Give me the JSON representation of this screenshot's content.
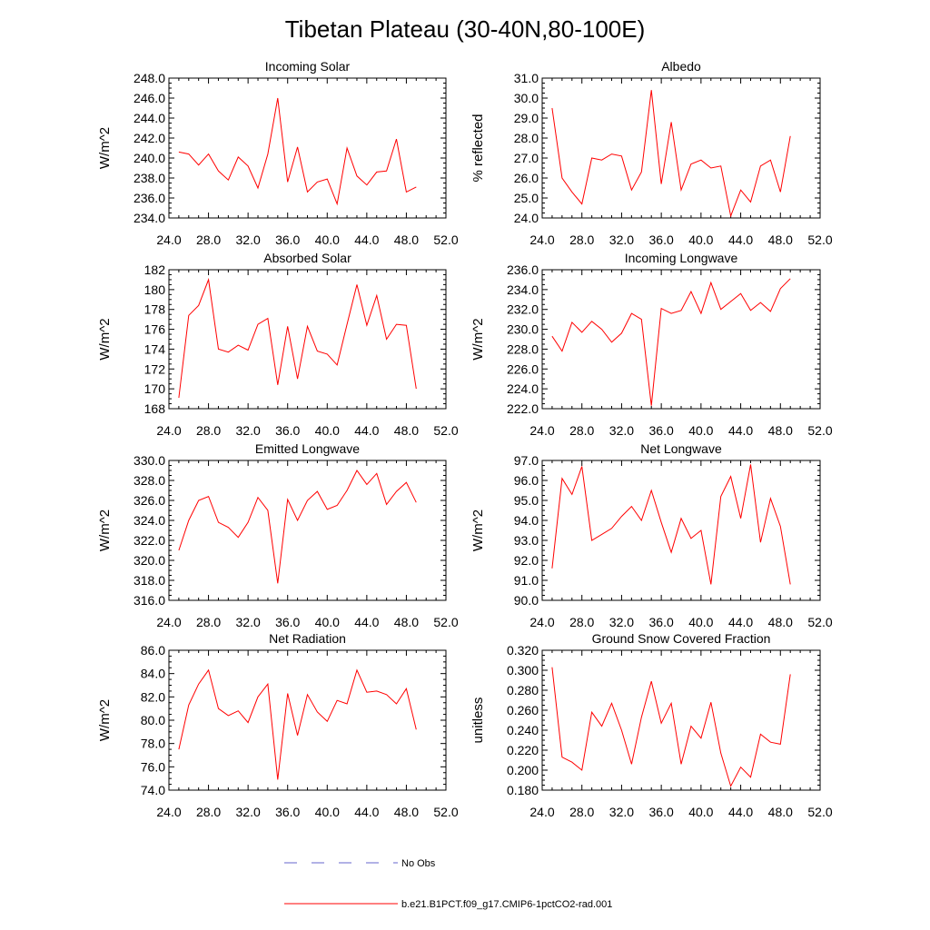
{
  "figure": {
    "title": "Tibetan Plateau (30-40N,80-100E)",
    "line_color": "#ff0000",
    "obs_color": "#6666cc"
  },
  "legend": {
    "obs_label": "No Obs",
    "model_label": "b.e21.B1PCT.f09_g17.CMIP6-1pctCO2-rad.001"
  },
  "chart_data": [
    {
      "type": "line",
      "title": "Incoming Solar",
      "ylabel": "W/m^2",
      "xlim": [
        24,
        52
      ],
      "ylim": [
        234,
        248
      ],
      "xticks": [
        "24.0",
        "28.0",
        "32.0",
        "36.0",
        "40.0",
        "44.0",
        "48.0",
        "52.0"
      ],
      "yticks": [
        "234.0",
        "236.0",
        "238.0",
        "240.0",
        "242.0",
        "244.0",
        "246.0",
        "248.0"
      ],
      "x": [
        25,
        26,
        27,
        28,
        29,
        30,
        31,
        32,
        33,
        34,
        35,
        36,
        37,
        38,
        39,
        40,
        41,
        42,
        43,
        44,
        45,
        46,
        47,
        48,
        49
      ],
      "series": [
        {
          "values": [
            240.6,
            240.4,
            239.3,
            240.4,
            238.7,
            237.8,
            240.1,
            239.2,
            237.0,
            240.4,
            246.0,
            237.6,
            241.1,
            236.6,
            237.6,
            237.9,
            235.4,
            241.0,
            238.2,
            237.3,
            238.6,
            238.7,
            241.9,
            236.6,
            237.1
          ]
        }
      ]
    },
    {
      "type": "line",
      "title": "Albedo",
      "ylabel": "% reflected",
      "xlim": [
        24,
        52
      ],
      "ylim": [
        24,
        31
      ],
      "xticks": [
        "24.0",
        "28.0",
        "32.0",
        "36.0",
        "40.0",
        "44.0",
        "48.0",
        "52.0"
      ],
      "yticks": [
        "24.0",
        "25.0",
        "26.0",
        "27.0",
        "28.0",
        "29.0",
        "30.0",
        "31.0"
      ],
      "x": [
        25,
        26,
        27,
        28,
        29,
        30,
        31,
        32,
        33,
        34,
        35,
        36,
        37,
        38,
        39,
        40,
        41,
        42,
        43,
        44,
        45,
        46,
        47,
        48,
        49
      ],
      "series": [
        {
          "values": [
            29.5,
            26.0,
            25.3,
            24.7,
            27.0,
            26.9,
            27.2,
            27.1,
            25.4,
            26.3,
            30.4,
            25.7,
            28.8,
            25.4,
            26.7,
            26.9,
            26.5,
            26.6,
            24.1,
            25.4,
            24.8,
            26.6,
            26.9,
            25.3,
            28.1
          ]
        }
      ]
    },
    {
      "type": "line",
      "title": "Absorbed Solar",
      "ylabel": "W/m^2",
      "xlim": [
        24,
        52
      ],
      "ylim": [
        168,
        182
      ],
      "xticks": [
        "24.0",
        "28.0",
        "32.0",
        "36.0",
        "40.0",
        "44.0",
        "48.0",
        "52.0"
      ],
      "yticks": [
        "168",
        "170",
        "172",
        "174",
        "176",
        "178",
        "180",
        "182"
      ],
      "x": [
        25,
        26,
        27,
        28,
        29,
        30,
        31,
        32,
        33,
        34,
        35,
        36,
        37,
        38,
        39,
        40,
        41,
        42,
        43,
        44,
        45,
        46,
        47,
        48,
        49
      ],
      "series": [
        {
          "values": [
            169.1,
            177.4,
            178.4,
            181.0,
            174.0,
            173.7,
            174.4,
            173.9,
            176.5,
            177.1,
            170.4,
            176.3,
            171.0,
            176.3,
            173.8,
            173.5,
            172.4,
            176.5,
            180.5,
            176.4,
            179.4,
            175.0,
            176.5,
            176.4,
            170.0
          ]
        }
      ]
    },
    {
      "type": "line",
      "title": "Incoming Longwave",
      "ylabel": "W/m^2",
      "xlim": [
        24,
        52
      ],
      "ylim": [
        222,
        236
      ],
      "xticks": [
        "24.0",
        "28.0",
        "32.0",
        "36.0",
        "40.0",
        "44.0",
        "48.0",
        "52.0"
      ],
      "yticks": [
        "222.0",
        "224.0",
        "226.0",
        "228.0",
        "230.0",
        "232.0",
        "234.0",
        "236.0"
      ],
      "x": [
        25,
        26,
        27,
        28,
        29,
        30,
        31,
        32,
        33,
        34,
        35,
        36,
        37,
        38,
        39,
        40,
        41,
        42,
        43,
        44,
        45,
        46,
        47,
        48,
        49
      ],
      "series": [
        {
          "values": [
            229.3,
            227.8,
            230.7,
            229.7,
            230.8,
            230.0,
            228.7,
            229.6,
            231.6,
            231.0,
            222.3,
            232.1,
            231.6,
            231.9,
            233.8,
            231.6,
            234.7,
            232.0,
            232.8,
            233.6,
            231.9,
            232.7,
            231.8,
            234.1,
            235.1
          ]
        }
      ]
    },
    {
      "type": "line",
      "title": "Emitted Longwave",
      "ylabel": "W/m^2",
      "xlim": [
        24,
        52
      ],
      "ylim": [
        316,
        330
      ],
      "xticks": [
        "24.0",
        "28.0",
        "32.0",
        "36.0",
        "40.0",
        "44.0",
        "48.0",
        "52.0"
      ],
      "yticks": [
        "316.0",
        "318.0",
        "320.0",
        "322.0",
        "324.0",
        "326.0",
        "328.0",
        "330.0"
      ],
      "x": [
        25,
        26,
        27,
        28,
        29,
        30,
        31,
        32,
        33,
        34,
        35,
        36,
        37,
        38,
        39,
        40,
        41,
        42,
        43,
        44,
        45,
        46,
        47,
        48,
        49
      ],
      "series": [
        {
          "values": [
            321.0,
            324.0,
            326.0,
            326.4,
            323.8,
            323.3,
            322.3,
            323.8,
            326.3,
            325.0,
            317.7,
            326.1,
            324.0,
            326.0,
            326.9,
            325.1,
            325.5,
            327.0,
            329.0,
            327.6,
            328.7,
            325.6,
            326.9,
            327.8,
            325.8
          ]
        }
      ]
    },
    {
      "type": "line",
      "title": "Net Longwave",
      "ylabel": "W/m^2",
      "xlim": [
        24,
        52
      ],
      "ylim": [
        90,
        97
      ],
      "xticks": [
        "24.0",
        "28.0",
        "32.0",
        "36.0",
        "40.0",
        "44.0",
        "48.0",
        "52.0"
      ],
      "yticks": [
        "90.0",
        "91.0",
        "92.0",
        "93.0",
        "94.0",
        "95.0",
        "96.0",
        "97.0"
      ],
      "x": [
        25,
        26,
        27,
        28,
        29,
        30,
        31,
        32,
        33,
        34,
        35,
        36,
        37,
        38,
        39,
        40,
        41,
        42,
        43,
        44,
        45,
        46,
        47,
        48,
        49
      ],
      "series": [
        {
          "values": [
            91.6,
            96.1,
            95.3,
            96.7,
            93.0,
            93.3,
            93.6,
            94.2,
            94.7,
            94.0,
            95.5,
            93.9,
            92.4,
            94.1,
            93.1,
            93.5,
            90.8,
            95.2,
            96.2,
            94.1,
            96.8,
            92.9,
            95.1,
            93.7,
            90.8
          ]
        }
      ]
    },
    {
      "type": "line",
      "title": "Net Radiation",
      "ylabel": "W/m^2",
      "xlim": [
        24,
        52
      ],
      "ylim": [
        74,
        86
      ],
      "xticks": [
        "24.0",
        "28.0",
        "32.0",
        "36.0",
        "40.0",
        "44.0",
        "48.0",
        "52.0"
      ],
      "yticks": [
        "74.0",
        "76.0",
        "78.0",
        "80.0",
        "82.0",
        "84.0",
        "86.0"
      ],
      "x": [
        25,
        26,
        27,
        28,
        29,
        30,
        31,
        32,
        33,
        34,
        35,
        36,
        37,
        38,
        39,
        40,
        41,
        42,
        43,
        44,
        45,
        46,
        47,
        48,
        49
      ],
      "series": [
        {
          "values": [
            77.5,
            81.3,
            83.1,
            84.3,
            81.0,
            80.4,
            80.8,
            79.8,
            82.0,
            83.1,
            74.9,
            82.3,
            78.7,
            82.2,
            80.7,
            79.9,
            81.7,
            81.4,
            84.3,
            82.4,
            82.5,
            82.2,
            81.4,
            82.7,
            79.2
          ]
        }
      ]
    },
    {
      "type": "line",
      "title": "Ground Snow Covered Fraction",
      "ylabel": "unitless",
      "xlim": [
        24,
        52
      ],
      "ylim": [
        0.18,
        0.32
      ],
      "xticks": [
        "24.0",
        "28.0",
        "32.0",
        "36.0",
        "40.0",
        "44.0",
        "48.0",
        "52.0"
      ],
      "yticks": [
        "0.180",
        "0.200",
        "0.220",
        "0.240",
        "0.260",
        "0.280",
        "0.300",
        "0.320"
      ],
      "x": [
        25,
        26,
        27,
        28,
        29,
        30,
        31,
        32,
        33,
        34,
        35,
        36,
        37,
        38,
        39,
        40,
        41,
        42,
        43,
        44,
        45,
        46,
        47,
        48,
        49
      ],
      "series": [
        {
          "values": [
            0.303,
            0.213,
            0.208,
            0.2,
            0.258,
            0.244,
            0.267,
            0.24,
            0.206,
            0.253,
            0.289,
            0.247,
            0.267,
            0.206,
            0.244,
            0.232,
            0.268,
            0.217,
            0.184,
            0.203,
            0.193,
            0.236,
            0.228,
            0.226,
            0.296
          ]
        }
      ]
    }
  ]
}
